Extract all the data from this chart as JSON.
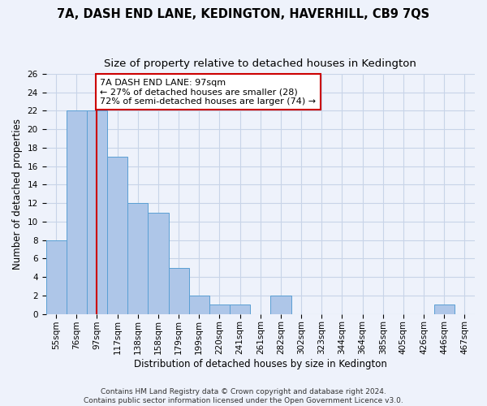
{
  "title": "7A, DASH END LANE, KEDINGTON, HAVERHILL, CB9 7QS",
  "subtitle": "Size of property relative to detached houses in Kedington",
  "xlabel": "Distribution of detached houses by size in Kedington",
  "ylabel": "Number of detached properties",
  "categories": [
    "55sqm",
    "76sqm",
    "97sqm",
    "117sqm",
    "138sqm",
    "158sqm",
    "179sqm",
    "199sqm",
    "220sqm",
    "241sqm",
    "261sqm",
    "282sqm",
    "302sqm",
    "323sqm",
    "344sqm",
    "364sqm",
    "385sqm",
    "405sqm",
    "426sqm",
    "446sqm",
    "467sqm"
  ],
  "values": [
    8,
    22,
    22,
    17,
    12,
    11,
    5,
    2,
    1,
    1,
    0,
    2,
    0,
    0,
    0,
    0,
    0,
    0,
    0,
    1,
    0
  ],
  "bar_color": "#aec6e8",
  "bar_edge_color": "#5a9fd4",
  "highlight_index": 2,
  "highlight_line_color": "#cc0000",
  "annotation_line1": "7A DASH END LANE: 97sqm",
  "annotation_line2": "← 27% of detached houses are smaller (28)",
  "annotation_line3": "72% of semi-detached houses are larger (74) →",
  "annotation_box_color": "#ffffff",
  "annotation_box_edge_color": "#cc0000",
  "ylim": [
    0,
    26
  ],
  "yticks": [
    0,
    2,
    4,
    6,
    8,
    10,
    12,
    14,
    16,
    18,
    20,
    22,
    24,
    26
  ],
  "footer_line1": "Contains HM Land Registry data © Crown copyright and database right 2024.",
  "footer_line2": "Contains public sector information licensed under the Open Government Licence v3.0.",
  "background_color": "#eef2fb",
  "grid_color": "#c8d4e8",
  "title_fontsize": 10.5,
  "subtitle_fontsize": 9.5,
  "tick_fontsize": 7.5,
  "ylabel_fontsize": 8.5,
  "xlabel_fontsize": 8.5,
  "annotation_fontsize": 8,
  "footer_fontsize": 6.5
}
